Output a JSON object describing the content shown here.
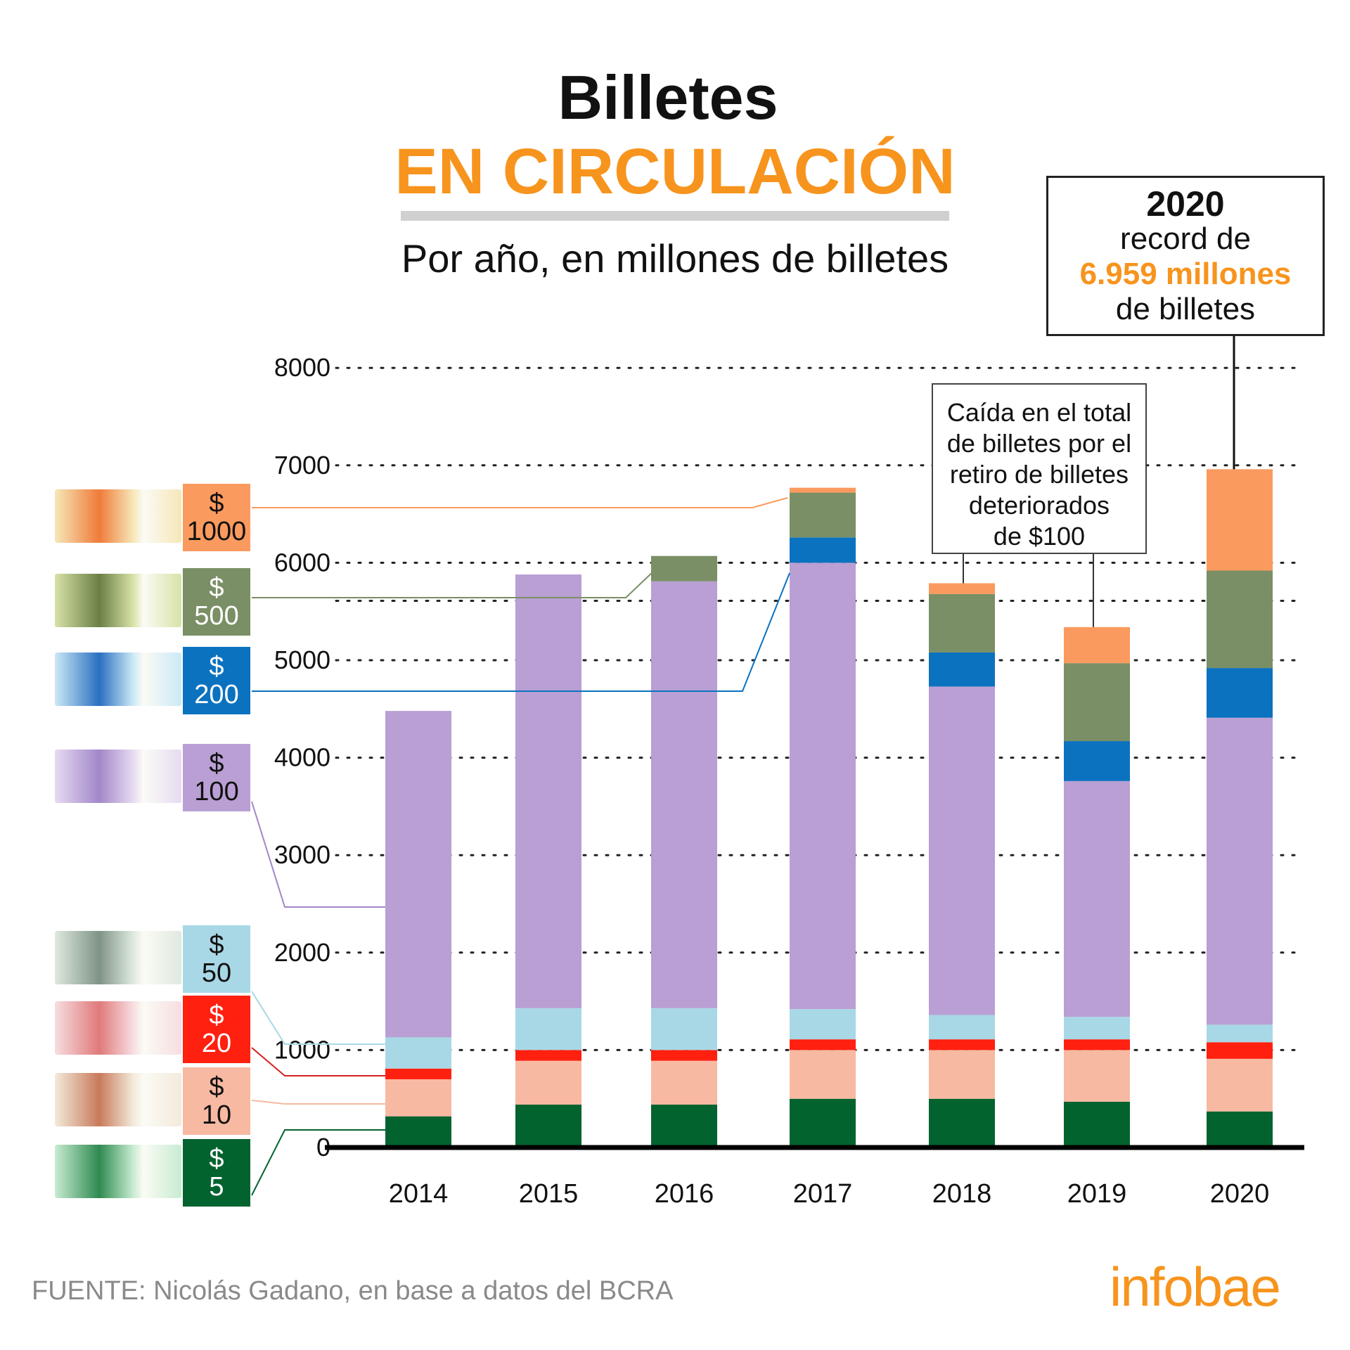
{
  "header": {
    "title_line1": "Billetes",
    "title_line2": "EN CIRCULACIÓN",
    "subtitle": "Por año, en millones de billetes"
  },
  "annotations": {
    "record": {
      "year": "2020",
      "line2": "record de",
      "highlight": "6.959 millones",
      "line4": "de billetes"
    },
    "drop_note": [
      "Caída en el total",
      "de billetes por el",
      "retiro de billetes",
      "deteriorados",
      "de $100"
    ]
  },
  "legend": [
    {
      "key": "b1000",
      "symbol": "$",
      "value": "1000",
      "color": "#fb9a5e",
      "text_color": "#111111",
      "note_color": "#f6e7b8",
      "note_accent": "#f07b3a"
    },
    {
      "key": "b500",
      "symbol": "$",
      "value": "500",
      "color": "#7a8f65",
      "text_color": "#ffffff",
      "note_color": "#d7e2a8",
      "note_accent": "#6b7f45"
    },
    {
      "key": "b200",
      "symbol": "$",
      "value": "200",
      "color": "#0b72bf",
      "text_color": "#ffffff",
      "note_color": "#cbe9f6",
      "note_accent": "#2a6fc0"
    },
    {
      "key": "b100",
      "symbol": "$",
      "value": "100",
      "color": "#b99fd3",
      "text_color": "#111111",
      "note_color": "#e6dbf1",
      "note_accent": "#a287c9"
    },
    {
      "key": "b50",
      "symbol": "$",
      "value": "50",
      "color": "#a8d8e6",
      "text_color": "#111111",
      "note_color": "#dfe9df",
      "note_accent": "#7f9486"
    },
    {
      "key": "b20",
      "symbol": "$",
      "value": "20",
      "color": "#ff2010",
      "text_color": "#ffffff",
      "note_color": "#f7dde0",
      "note_accent": "#e07a7a"
    },
    {
      "key": "b10",
      "symbol": "$",
      "value": "10",
      "color": "#f7b9a2",
      "text_color": "#111111",
      "note_color": "#f3eadb",
      "note_accent": "#c87a5a"
    },
    {
      "key": "b5",
      "symbol": "$",
      "value": "5",
      "color": "#03632f",
      "text_color": "#ffffff",
      "note_color": "#c8ecd2",
      "note_accent": "#2f8a50"
    }
  ],
  "footer": {
    "source": "FUENTE: Nicolás Gadano, en base a datos del BCRA",
    "logo": "infobae"
  },
  "chart_data": {
    "type": "bar",
    "stacked": true,
    "title": "Billetes en circulación",
    "subtitle": "Por año, en millones de billetes",
    "xlabel": "",
    "ylabel": "millones de billetes",
    "categories": [
      "2014",
      "2015",
      "2016",
      "2017",
      "2018",
      "2019",
      "2020"
    ],
    "ylim": [
      0,
      8000
    ],
    "yticks": [
      0,
      1000,
      2000,
      3000,
      4000,
      5000,
      6000,
      7000,
      8000
    ],
    "grid": true,
    "extra_reference_line": 5610,
    "legend_position": "left",
    "series": [
      {
        "name": "$ 5",
        "color": "#03632f",
        "values": [
          320,
          440,
          440,
          500,
          500,
          470,
          370
        ]
      },
      {
        "name": "$ 10",
        "color": "#f7b9a2",
        "values": [
          380,
          450,
          450,
          500,
          500,
          530,
          540
        ]
      },
      {
        "name": "$ 20",
        "color": "#ff2010",
        "values": [
          110,
          110,
          110,
          110,
          110,
          110,
          170
        ]
      },
      {
        "name": "$ 50",
        "color": "#a8d8e6",
        "values": [
          320,
          430,
          430,
          310,
          250,
          230,
          180
        ]
      },
      {
        "name": "$ 100",
        "color": "#b99fd3",
        "values": [
          3350,
          4450,
          4380,
          4580,
          3370,
          2420,
          3150
        ]
      },
      {
        "name": "$ 200",
        "color": "#0b72bf",
        "values": [
          0,
          0,
          0,
          260,
          350,
          410,
          510
        ]
      },
      {
        "name": "$ 500",
        "color": "#7a8f65",
        "values": [
          0,
          0,
          260,
          460,
          600,
          800,
          1000
        ]
      },
      {
        "name": "$ 1000",
        "color": "#fb9a5e",
        "values": [
          0,
          0,
          0,
          50,
          110,
          370,
          1040
        ]
      }
    ]
  }
}
